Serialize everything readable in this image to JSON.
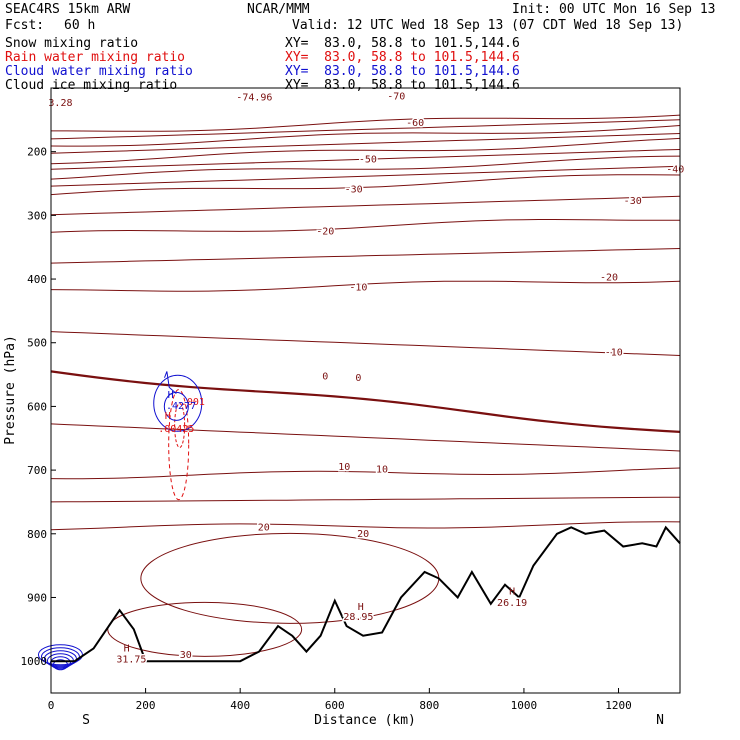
{
  "header": {
    "model": "SEAC4RS 15km ARW",
    "org": "NCAR/MMM",
    "init": "Init: 00 UTC Mon 16 Sep 13",
    "fcst_label": "Fcst:",
    "fcst_value": "60 h",
    "valid": "Valid: 12 UTC Wed 18 Sep 13 (07 CDT Wed 18 Sep 13)"
  },
  "legend": [
    {
      "name": "Snow mixing ratio",
      "xy": "XY=  83.0, 58.8 to 101.5,144.6",
      "color": "#000000"
    },
    {
      "name": "Rain water mixing ratio",
      "xy": "XY=  83.0, 58.8 to 101.5,144.6",
      "color": "#e01010"
    },
    {
      "name": "Cloud water mixing ratio",
      "xy": "XY=  83.0, 58.8 to 101.5,144.6",
      "color": "#1010d0"
    },
    {
      "name": "Cloud ice mixing ratio",
      "xy": "XY=  83.0, 58.8 to 101.5,144.6",
      "color": "#000000"
    }
  ],
  "colors": {
    "temperature": "#7a1010",
    "rain": "#e01010",
    "cloud_water": "#1010d0",
    "terrain": "#000000"
  },
  "chart_data": {
    "type": "line",
    "xlabel": "Distance (km)",
    "ylabel": "Pressure (hPa)",
    "xlim": [
      0,
      1330
    ],
    "ylim": [
      1050,
      100
    ],
    "xticks": [
      0,
      200,
      400,
      600,
      800,
      1000,
      1200
    ],
    "xtick_labels": [
      "0",
      "200",
      "400",
      "600",
      "800",
      "1000",
      "1200"
    ],
    "yticks": [
      200,
      300,
      400,
      500,
      600,
      700,
      800,
      900,
      1000
    ],
    "ytick_labels": [
      "200",
      "300",
      "400",
      "500",
      "600",
      "700",
      "800",
      "900",
      "1000"
    ],
    "ends": {
      "left": "S",
      "right": "N"
    },
    "isotherms": [
      {
        "value": -70,
        "p0": 170,
        "p1": 140
      },
      {
        "value": -60,
        "p0": 190,
        "p1": 160
      },
      {
        "value": -50,
        "p0": 215,
        "p1": 183
      },
      {
        "value": -40,
        "p0": 240,
        "p1": 210
      },
      {
        "value": -30,
        "p0": 268,
        "p1": 236
      },
      {
        "value": -20,
        "p0": 330,
        "p1": 304
      },
      {
        "value": -10,
        "p0": 420,
        "p1": 400
      },
      {
        "value": 0,
        "p0": 545,
        "p1": 640
      },
      {
        "value": 10,
        "p0": 710,
        "p1": 700
      },
      {
        "value": 20,
        "p0": 790,
        "p1": 785
      }
    ],
    "contour_labels": [
      {
        "text": "-74.96",
        "x": 430,
        "p": 120
      },
      {
        "text": "-70",
        "x": 730,
        "p": 118
      },
      {
        "text": "-60",
        "x": 770,
        "p": 160
      },
      {
        "text": "-50",
        "x": 670,
        "p": 217
      },
      {
        "text": "-40",
        "x": 1320,
        "p": 233
      },
      {
        "text": "-30",
        "x": 640,
        "p": 264
      },
      {
        "text": "-30",
        "x": 1230,
        "p": 282
      },
      {
        "text": "-20",
        "x": 580,
        "p": 330
      },
      {
        "text": "-20",
        "x": 1180,
        "p": 402
      },
      {
        "text": "-10",
        "x": 650,
        "p": 418
      },
      {
        "text": "-10",
        "x": 1190,
        "p": 520
      },
      {
        "text": "0",
        "x": 580,
        "p": 558
      },
      {
        "text": "0",
        "x": 650,
        "p": 560
      },
      {
        "text": "10",
        "x": 620,
        "p": 700
      },
      {
        "text": "10",
        "x": 700,
        "p": 704
      },
      {
        "text": "20",
        "x": 450,
        "p": 795
      },
      {
        "text": "20",
        "x": 660,
        "p": 805
      },
      {
        "text": "30",
        "x": 285,
        "p": 995
      },
      {
        "text": "28.95",
        "x": 650,
        "p": 935
      },
      {
        "text": "26.19",
        "x": 975,
        "p": 913
      },
      {
        "text": "31.75",
        "x": 170,
        "p": 1002
      },
      {
        "text": "3.28",
        "x": 20,
        "p": 128
      }
    ],
    "highs": [
      {
        "text": "H",
        "x": 655,
        "p": 920
      },
      {
        "text": "H",
        "x": 975,
        "p": 895
      },
      {
        "text": "H",
        "x": 160,
        "p": 985
      }
    ],
    "rain_labels": [
      {
        "text": "H",
        "x": 247,
        "p": 620
      },
      {
        "text": ".00425",
        "x": 265,
        "p": 640
      },
      {
        "text": ".001",
        "x": 300,
        "p": 598
      }
    ],
    "cloud_labels": [
      {
        "text": "H",
        "x": 253,
        "p": 587
      },
      {
        "text": ".4277",
        "x": 275,
        "p": 604
      }
    ],
    "terrain": [
      [
        0,
        1000
      ],
      [
        50,
        1000
      ],
      [
        90,
        980
      ],
      [
        145,
        920
      ],
      [
        175,
        950
      ],
      [
        200,
        1000
      ],
      [
        300,
        1000
      ],
      [
        400,
        1000
      ],
      [
        440,
        985
      ],
      [
        480,
        945
      ],
      [
        510,
        960
      ],
      [
        540,
        985
      ],
      [
        570,
        960
      ],
      [
        600,
        905
      ],
      [
        625,
        945
      ],
      [
        660,
        960
      ],
      [
        700,
        955
      ],
      [
        740,
        900
      ],
      [
        790,
        860
      ],
      [
        820,
        870
      ],
      [
        860,
        900
      ],
      [
        890,
        860
      ],
      [
        930,
        910
      ],
      [
        960,
        880
      ],
      [
        990,
        900
      ],
      [
        1020,
        850
      ],
      [
        1070,
        800
      ],
      [
        1100,
        790
      ],
      [
        1130,
        800
      ],
      [
        1170,
        795
      ],
      [
        1210,
        820
      ],
      [
        1250,
        815
      ],
      [
        1280,
        820
      ],
      [
        1300,
        790
      ],
      [
        1330,
        815
      ]
    ]
  }
}
